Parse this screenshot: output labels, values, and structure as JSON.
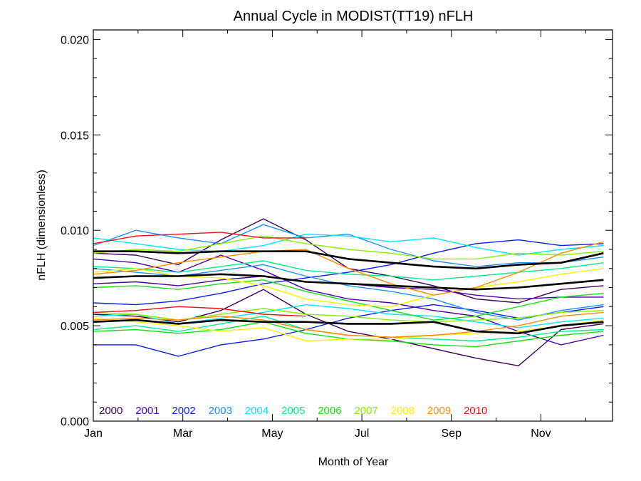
{
  "chart_data": {
    "type": "line",
    "title": "Annual Cycle in MODIST(TT19) nFLH",
    "xlabel": "Month of Year",
    "ylabel": "nFLH (dimensionless)",
    "xlim": [
      1,
      12.6
    ],
    "ylim": [
      0.0,
      0.0205
    ],
    "x_ticks": [
      {
        "value": 1,
        "label": "Jan"
      },
      {
        "value": 3,
        "label": "Mar"
      },
      {
        "value": 5,
        "label": "May"
      },
      {
        "value": 7,
        "label": "Jul"
      },
      {
        "value": 9,
        "label": "Sep"
      },
      {
        "value": 11,
        "label": "Nov"
      }
    ],
    "y_ticks": [
      {
        "value": 0.0,
        "label": "0.000"
      },
      {
        "value": 0.005,
        "label": "0.005"
      },
      {
        "value": 0.01,
        "label": "0.010"
      },
      {
        "value": 0.015,
        "label": "0.015"
      },
      {
        "value": 0.02,
        "label": "0.020"
      }
    ],
    "legend_placement": "bottom-left, inside plot",
    "series": [
      {
        "name": "2000",
        "color": "#3b0059",
        "lines": [
          [
            0.0056,
            0.0055,
            0.0052,
            0.0058,
            0.0069,
            0.0056,
            0.0047,
            0.0043,
            0.0038,
            0.0033,
            0.0029,
            0.0048,
            0.0051
          ],
          [
            0.0088,
            0.0087,
            0.0082,
            0.0095,
            0.0106,
            0.0095,
            0.008,
            0.0076,
            0.0071,
            0.0064,
            0.0062,
            0.0069,
            0.0071
          ]
        ]
      },
      {
        "name": "2001",
        "color": "#4b00a8",
        "lines": [
          [
            0.0085,
            0.0083,
            0.0078,
            0.0087,
            0.0079,
            0.0069,
            0.0064,
            0.0062,
            0.0058,
            0.0055,
            0.0047,
            0.004,
            0.0045
          ],
          [
            0.0072,
            0.0073,
            0.0071,
            0.0074,
            0.0076,
            0.0073,
            0.0072,
            0.007,
            0.0069,
            0.0066,
            0.0064,
            0.0065,
            0.0065
          ]
        ]
      },
      {
        "name": "2002",
        "color": "#0a1ee6",
        "lines": [
          [
            0.004,
            0.004,
            0.0034,
            0.004,
            0.0043,
            0.0048,
            0.0054,
            0.0058,
            0.0061,
            0.0058,
            0.0054,
            0.0057,
            0.006
          ],
          [
            0.0062,
            0.0061,
            0.0063,
            0.0067,
            0.0072,
            0.0075,
            0.0078,
            0.0082,
            0.0088,
            0.0093,
            0.0095,
            0.0092,
            0.0093
          ]
        ]
      },
      {
        "name": "2003",
        "color": "#1f8fff",
        "lines": [
          [
            0.0092,
            0.01,
            0.0096,
            0.0093,
            0.0103,
            0.0096,
            0.0098,
            0.009,
            0.0084,
            0.0081,
            0.0083,
            0.0083,
            0.0086
          ],
          [
            0.008,
            0.0078,
            0.0076,
            0.0079,
            0.0082,
            0.0076,
            0.0071,
            0.0068,
            0.0064,
            0.0057,
            0.0053,
            0.0058,
            0.0061
          ]
        ]
      },
      {
        "name": "2004",
        "color": "#00e8ff",
        "lines": [
          [
            0.0096,
            0.0093,
            0.009,
            0.0089,
            0.0092,
            0.0098,
            0.0097,
            0.0094,
            0.0096,
            0.0091,
            0.0087,
            0.009,
            0.0092
          ],
          [
            0.0055,
            0.0056,
            0.0051,
            0.0054,
            0.0057,
            0.0061,
            0.0059,
            0.0056,
            0.0055,
            0.0052,
            0.0049,
            0.0052,
            0.0054
          ]
        ]
      },
      {
        "name": "2005",
        "color": "#00f08a",
        "lines": [
          [
            0.0081,
            0.008,
            0.0078,
            0.0081,
            0.0084,
            0.0079,
            0.0077,
            0.0076,
            0.0074,
            0.0076,
            0.0078,
            0.008,
            0.0083
          ],
          [
            0.0048,
            0.005,
            0.0047,
            0.0051,
            0.0055,
            0.0048,
            0.0045,
            0.0044,
            0.0043,
            0.0042,
            0.0044,
            0.0047,
            0.0048
          ]
        ]
      },
      {
        "name": "2006",
        "color": "#18e018",
        "lines": [
          [
            0.007,
            0.0071,
            0.0069,
            0.0072,
            0.0074,
            0.0068,
            0.0063,
            0.0058,
            0.0053,
            0.0055,
            0.006,
            0.0065,
            0.0067
          ],
          [
            0.0047,
            0.0048,
            0.0046,
            0.0048,
            0.0052,
            0.0046,
            0.0043,
            0.0042,
            0.004,
            0.0039,
            0.0042,
            0.0045,
            0.0047
          ]
        ]
      },
      {
        "name": "2007",
        "color": "#88f000",
        "lines": [
          [
            0.0088,
            0.009,
            0.0089,
            0.0093,
            0.0097,
            0.0093,
            0.009,
            0.0088,
            0.0085,
            0.0085,
            0.0088,
            0.0087,
            0.0089
          ],
          [
            0.0057,
            0.0056,
            0.0053,
            0.0056,
            0.0059,
            0.0056,
            0.0055,
            0.0053,
            0.0052,
            0.0053,
            0.0054,
            0.0057,
            0.0058
          ]
        ]
      },
      {
        "name": "2008",
        "color": "#ffee00",
        "lines": [
          [
            0.0078,
            0.008,
            0.0076,
            0.0075,
            0.0071,
            0.0064,
            0.0061,
            0.006,
            0.0066,
            0.007,
            0.0073,
            0.0077,
            0.008
          ],
          [
            0.0054,
            0.0052,
            0.005,
            0.0047,
            0.0049,
            0.0042,
            0.0043,
            0.0043,
            0.0045,
            0.0046,
            0.0047,
            0.005,
            0.0053
          ]
        ]
      },
      {
        "name": "2009",
        "color": "#ff8a00",
        "lines": [
          [
            0.0077,
            0.0079,
            0.0083,
            0.0086,
            0.0089,
            0.009,
            0.008,
            0.0072,
            0.0066,
            0.007,
            0.0078,
            0.0088,
            0.0094
          ],
          [
            0.0053,
            0.0054,
            0.0053,
            0.0055,
            0.0053,
            0.0048,
            0.0045,
            0.0044,
            0.0045,
            0.0047,
            0.005,
            0.0055,
            0.0057
          ]
        ]
      },
      {
        "name": "2010",
        "color": "#ee1111",
        "lines": [
          [
            0.0093,
            0.0097,
            0.0098,
            0.0099,
            0.0096,
            0.0096
          ],
          [
            0.0057,
            0.0058,
            0.006,
            0.0059,
            0.0056,
            0.0055
          ]
        ]
      },
      {
        "name": "",
        "color": "#000000",
        "lines": [
          [
            0.0089,
            0.0089,
            0.0088,
            0.0089,
            0.0089,
            0.0089,
            0.0085,
            0.0083,
            0.0081,
            0.008,
            0.0082,
            0.0083,
            0.0088
          ],
          [
            0.0075,
            0.0076,
            0.0076,
            0.0077,
            0.0076,
            0.0073,
            0.0072,
            0.0071,
            0.007,
            0.0069,
            0.007,
            0.0072,
            0.0074
          ],
          [
            0.0052,
            0.0053,
            0.0051,
            0.0053,
            0.0052,
            0.0052,
            0.0051,
            0.0051,
            0.0052,
            0.0047,
            0.0046,
            0.005,
            0.0052
          ]
        ]
      }
    ]
  }
}
